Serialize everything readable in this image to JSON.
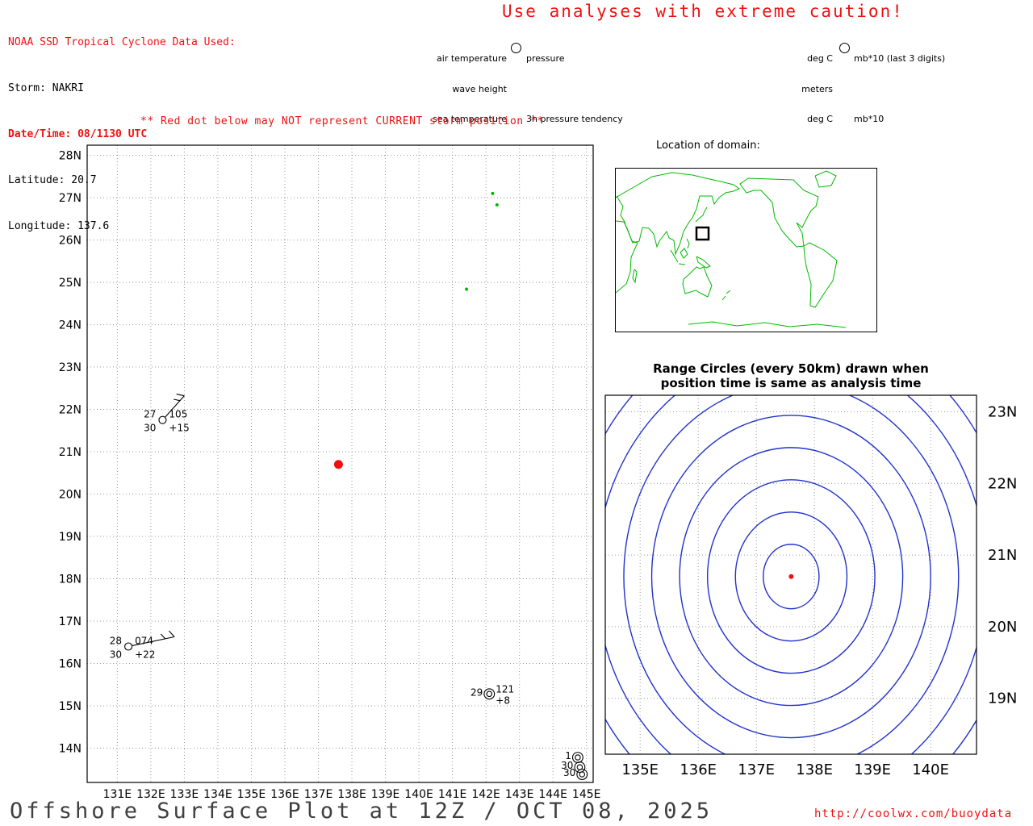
{
  "header": {
    "noaa_line": "NOAA SSD Tropical Cyclone Data Used:",
    "storm_line": "Storm: NAKRI",
    "datetime_line": "Date/Time: 08/1130 UTC",
    "latitude_line": "Latitude: 20.7",
    "longitude_line": "Longitude: 137.6"
  },
  "caution_banner": "Use analyses with extreme caution!",
  "station_legend": {
    "labels": {
      "row1_left": "air temperature",
      "row1_right": "pressure",
      "row2_left": "wave height",
      "row3_left": "sea temperature",
      "row3_right": "3h pressure tendency"
    },
    "units": {
      "row1_left": "deg C",
      "row1_right": "mb*10 (last 3 digits)",
      "row2_left": "meters",
      "row3_left": "deg C",
      "row3_right": "mb*10"
    }
  },
  "warning": "** Red dot below may NOT represent CURRENT storm position **",
  "domain_map": {
    "title": "Location of domain:"
  },
  "range_plot_titles": {
    "line1": "Range Circles (every 50km) drawn when",
    "line2": "position time is same as analysis time"
  },
  "footer": {
    "title": "Offshore Surface Plot at 12Z / OCT 08, 2025",
    "url": "http://coolwx.com/buoydata"
  },
  "colors": {
    "accent_red": "#ee1111",
    "map_green": "#00bb00",
    "circle_blue": "#2233cc",
    "footer_gray": "#3f3f3f",
    "grid_gray": "#999999"
  },
  "chart_data": [
    {
      "type": "scatter",
      "name": "offshore-surface-observation-plot",
      "x_axis": {
        "range": [
          130.1,
          145.2
        ],
        "tick_labels": [
          "131E",
          "132E",
          "133E",
          "134E",
          "135E",
          "136E",
          "137E",
          "138E",
          "139E",
          "140E",
          "141E",
          "142E",
          "143E",
          "144E",
          "145E"
        ]
      },
      "y_axis": {
        "range": [
          13.19,
          28.24
        ],
        "tick_labels": [
          "28N",
          "27N",
          "26N",
          "25N",
          "24N",
          "23N",
          "22N",
          "21N",
          "20N",
          "19N",
          "18N",
          "17N",
          "16N",
          "15N",
          "14N"
        ]
      },
      "storm_position": {
        "lon": 137.6,
        "lat": 20.7
      },
      "stations": [
        {
          "lon": 132.35,
          "lat": 21.75,
          "air_temp": "27",
          "pressure": "105",
          "sea_temp": "30",
          "tendency": "+15",
          "wind": "barb",
          "barb_dx": 27,
          "barb_dy": -30,
          "layout": "corners"
        },
        {
          "lon": 131.33,
          "lat": 16.4,
          "air_temp": "28",
          "pressure": "074",
          "sea_temp": "30",
          "tendency": "+22",
          "wind": "barb",
          "barb_dx": 57,
          "barb_dy": -12,
          "layout": "corners"
        },
        {
          "lon": 142.1,
          "lat": 15.28,
          "air_temp": "29",
          "pressure": "121",
          "tendency": "+8",
          "wind": "calm",
          "layout": "inline"
        },
        {
          "lon": 144.74,
          "lat": 13.78,
          "air_temp": "1",
          "wind": "calm",
          "layout": "inline"
        },
        {
          "lon": 144.8,
          "lat": 13.55,
          "air_temp": "30",
          "wind": "calm",
          "layout": "inline"
        },
        {
          "lon": 144.87,
          "lat": 13.38,
          "air_temp": "30",
          "wind": "calm",
          "layout": "inline",
          "emph": true
        }
      ],
      "islands": [
        {
          "lon": 142.2,
          "lat": 27.1
        },
        {
          "lon": 142.33,
          "lat": 26.83
        },
        {
          "lon": 141.42,
          "lat": 24.84
        }
      ]
    },
    {
      "type": "range_circles",
      "name": "storm-range-circles-plot",
      "center": {
        "lon": 137.6,
        "lat": 20.7
      },
      "interval_km": 50,
      "num_circles": 9,
      "x_axis": {
        "range": [
          134.4,
          140.79
        ],
        "tick_labels": [
          "135E",
          "136E",
          "137E",
          "138E",
          "139E",
          "140E"
        ]
      },
      "y_axis": {
        "range": [
          18.22,
          23.23
        ],
        "side": "right",
        "tick_labels": [
          "23N",
          "22N",
          "21N",
          "20N",
          "19N"
        ]
      }
    }
  ]
}
